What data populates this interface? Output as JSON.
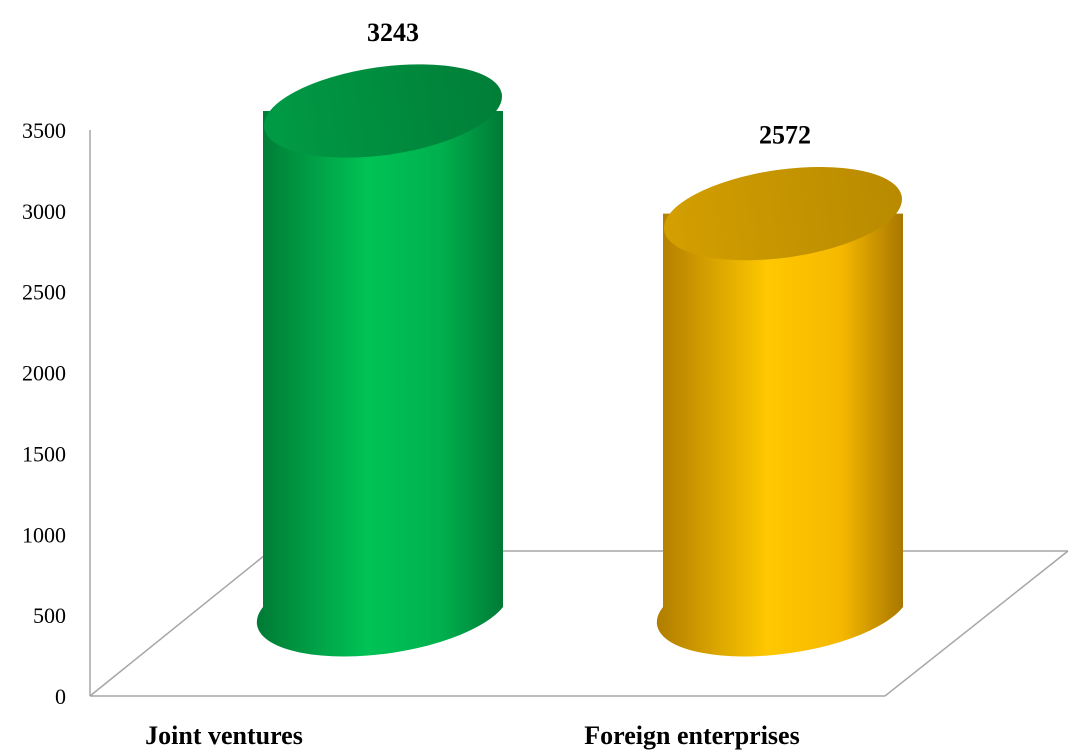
{
  "chart_data": {
    "type": "bar",
    "style": "3d-cylinder",
    "categories": [
      "Joint ventures",
      "Foreign enterprises"
    ],
    "values": [
      3243,
      2572
    ],
    "colors": [
      "#00b050",
      "#ffc000"
    ],
    "ylim": [
      0,
      3500
    ],
    "yticks": [
      "0",
      "500",
      "1000",
      "1500",
      "2000",
      "2500",
      "3000",
      "3500"
    ],
    "grid": false,
    "legend": "none",
    "data_labels": [
      "3243",
      "2572"
    ]
  }
}
